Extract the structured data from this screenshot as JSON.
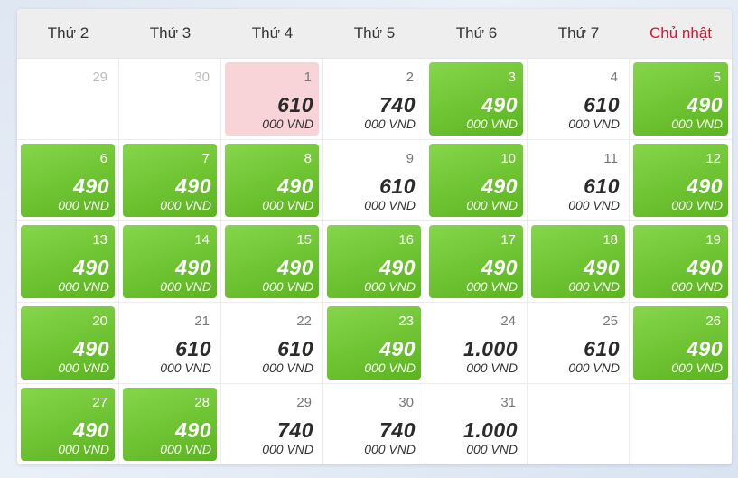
{
  "weekdays": [
    "Thứ 2",
    "Thứ 3",
    "Thứ 4",
    "Thứ 5",
    "Thứ 6",
    "Thứ 7",
    "Chủ nhật"
  ],
  "colors": {
    "cheap": "#6cc52f",
    "selected": "#f8d3d7",
    "sunday": "#e0112b"
  },
  "days": [
    {
      "day": "29",
      "price": "",
      "currency": "",
      "state": "muted"
    },
    {
      "day": "30",
      "price": "",
      "currency": "",
      "state": "muted"
    },
    {
      "day": "1",
      "price": "610",
      "currency": "000 VND",
      "state": "selected"
    },
    {
      "day": "2",
      "price": "740",
      "currency": "000 VND",
      "state": "normal"
    },
    {
      "day": "3",
      "price": "490",
      "currency": "000 VND",
      "state": "cheap"
    },
    {
      "day": "4",
      "price": "610",
      "currency": "000 VND",
      "state": "normal"
    },
    {
      "day": "5",
      "price": "490",
      "currency": "000 VND",
      "state": "cheap"
    },
    {
      "day": "6",
      "price": "490",
      "currency": "000 VND",
      "state": "cheap"
    },
    {
      "day": "7",
      "price": "490",
      "currency": "000 VND",
      "state": "cheap"
    },
    {
      "day": "8",
      "price": "490",
      "currency": "000 VND",
      "state": "cheap"
    },
    {
      "day": "9",
      "price": "610",
      "currency": "000 VND",
      "state": "normal"
    },
    {
      "day": "10",
      "price": "490",
      "currency": "000 VND",
      "state": "cheap"
    },
    {
      "day": "11",
      "price": "610",
      "currency": "000 VND",
      "state": "normal"
    },
    {
      "day": "12",
      "price": "490",
      "currency": "000 VND",
      "state": "cheap"
    },
    {
      "day": "13",
      "price": "490",
      "currency": "000 VND",
      "state": "cheap"
    },
    {
      "day": "14",
      "price": "490",
      "currency": "000 VND",
      "state": "cheap"
    },
    {
      "day": "15",
      "price": "490",
      "currency": "000 VND",
      "state": "cheap"
    },
    {
      "day": "16",
      "price": "490",
      "currency": "000 VND",
      "state": "cheap"
    },
    {
      "day": "17",
      "price": "490",
      "currency": "000 VND",
      "state": "cheap"
    },
    {
      "day": "18",
      "price": "490",
      "currency": "000 VND",
      "state": "cheap"
    },
    {
      "day": "19",
      "price": "490",
      "currency": "000 VND",
      "state": "cheap"
    },
    {
      "day": "20",
      "price": "490",
      "currency": "000 VND",
      "state": "cheap"
    },
    {
      "day": "21",
      "price": "610",
      "currency": "000 VND",
      "state": "normal"
    },
    {
      "day": "22",
      "price": "610",
      "currency": "000 VND",
      "state": "normal"
    },
    {
      "day": "23",
      "price": "490",
      "currency": "000 VND",
      "state": "cheap"
    },
    {
      "day": "24",
      "price": "1.000",
      "currency": "000 VND",
      "state": "normal"
    },
    {
      "day": "25",
      "price": "610",
      "currency": "000 VND",
      "state": "normal"
    },
    {
      "day": "26",
      "price": "490",
      "currency": "000 VND",
      "state": "cheap"
    },
    {
      "day": "27",
      "price": "490",
      "currency": "000 VND",
      "state": "cheap"
    },
    {
      "day": "28",
      "price": "490",
      "currency": "000 VND",
      "state": "cheap"
    },
    {
      "day": "29",
      "price": "740",
      "currency": "000 VND",
      "state": "normal"
    },
    {
      "day": "30",
      "price": "740",
      "currency": "000 VND",
      "state": "normal"
    },
    {
      "day": "31",
      "price": "1.000",
      "currency": "000 VND",
      "state": "normal"
    },
    {
      "day": "",
      "price": "",
      "currency": "",
      "state": "empty"
    },
    {
      "day": "",
      "price": "",
      "currency": "",
      "state": "empty"
    }
  ]
}
